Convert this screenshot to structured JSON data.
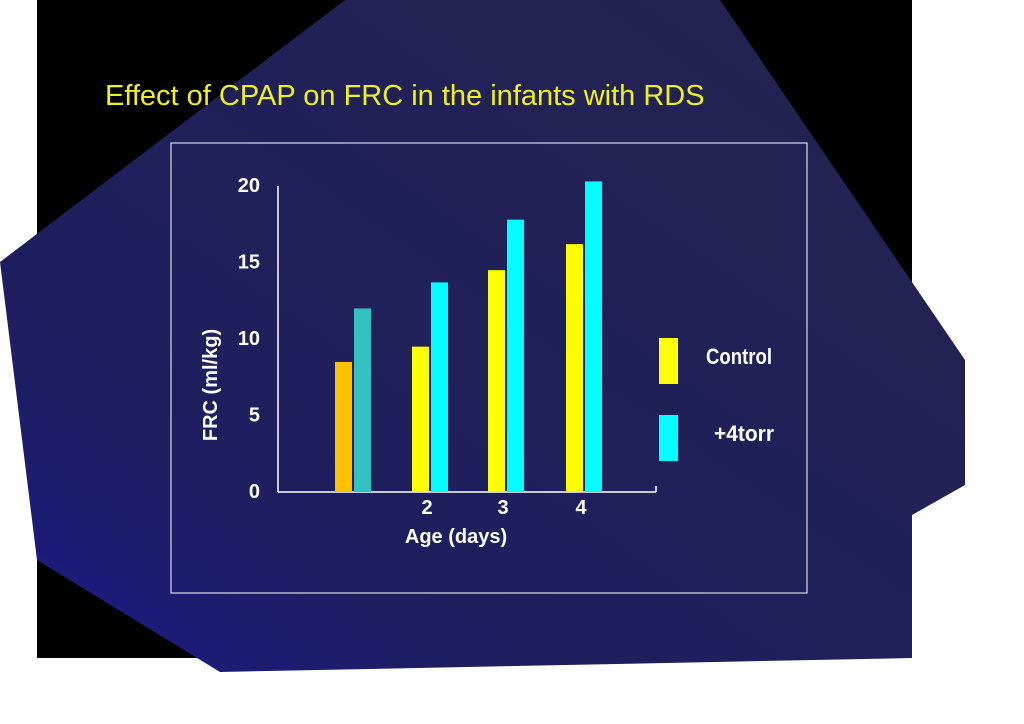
{
  "slide": {
    "title": "Effect of CPAP on FRC in the infants with RDS"
  },
  "colors": {
    "background_black": "#000000",
    "panel_navy": "#222255",
    "title_yellow": "#f0f020",
    "control_yellow": "#ffff00",
    "control_first_bar": "#ffc000",
    "torr_cyan": "#00ffff",
    "torr_first_bar": "#33c0c0",
    "text_white": "#ffffff"
  },
  "chart_data": {
    "type": "bar",
    "title": "",
    "xlabel": "Age (days)",
    "ylabel": "FRC (ml/kg)",
    "categories": [
      "",
      "2",
      "3",
      "4"
    ],
    "series": [
      {
        "name": "Control",
        "values": [
          8.5,
          9.5,
          14.5,
          16.2
        ]
      },
      {
        "name": "+4torr",
        "values": [
          12.0,
          13.7,
          17.8,
          20.3
        ]
      }
    ],
    "ylim": [
      0,
      20
    ],
    "yticks": [
      "0",
      "5",
      "10",
      "15",
      "20"
    ],
    "legend": {
      "position": "right",
      "labels": [
        "Control",
        "+4torr"
      ]
    },
    "grid": false
  }
}
